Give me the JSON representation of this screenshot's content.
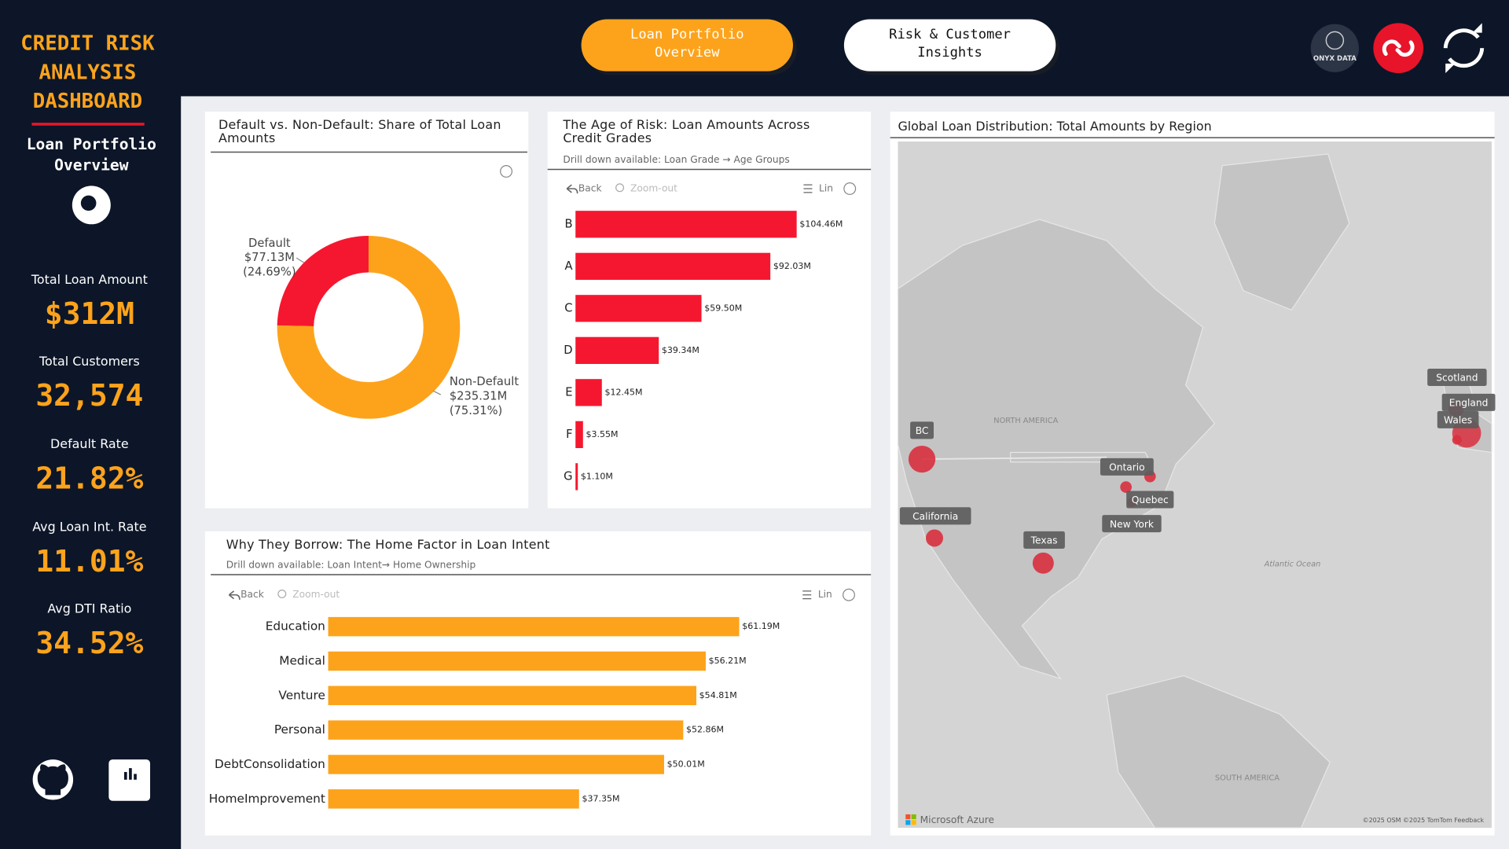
{
  "sidebar": {
    "title": "CREDIT RISK ANALYSIS DASHBOARD",
    "subtitle": "Loan Portfolio Overview",
    "kpis": [
      {
        "label": "Total Loan Amount",
        "value": "$312M"
      },
      {
        "label": "Total Customers",
        "value": "32,574"
      },
      {
        "label": "Default Rate",
        "value": "21.82%"
      },
      {
        "label": "Avg Loan Int. Rate",
        "value": "11.01%"
      },
      {
        "label": "Avg DTI Ratio",
        "value": "34.52%"
      }
    ]
  },
  "tabs": [
    "Loan Portfolio Overview",
    "Risk & Customer Insights"
  ],
  "brand": "ONYX DATA",
  "chart_data": [
    {
      "type": "donut",
      "title": "Default vs. Non-Default: Share of Total Loan Amounts",
      "categories": [
        "Default",
        "Non-Default"
      ],
      "values": [
        77.13,
        235.31
      ],
      "value_labels": [
        "$77.13M",
        "$235.31M"
      ],
      "percentages": [
        24.69,
        75.31
      ],
      "percentage_labels": [
        "(24.69%)",
        "(75.31%)"
      ],
      "colors": [
        "#f5172f",
        "#fda31b"
      ]
    },
    {
      "type": "bar",
      "title": "The Age of Risk: Loan Amounts Across Credit Grades",
      "subtitle": "Drill down available: Loan Grade → Age Groups",
      "controls": [
        "Back",
        "Zoom-out",
        "Lin"
      ],
      "categories": [
        "B",
        "A",
        "C",
        "D",
        "E",
        "F",
        "G"
      ],
      "values": [
        104.46,
        92.03,
        59.5,
        39.34,
        12.45,
        3.55,
        1.1
      ],
      "value_labels": [
        "$104.46M",
        "$92.03M",
        "$59.50M",
        "$39.34M",
        "$12.45M",
        "$3.55M",
        "$1.10M"
      ],
      "color": "#f5172f"
    },
    {
      "type": "bar",
      "title": "Why They Borrow: The Home Factor in Loan Intent",
      "subtitle": "Drill down available: Loan Intent→ Home Ownership",
      "controls": [
        "Back",
        "Zoom-out",
        "Lin"
      ],
      "categories": [
        "Education",
        "Medical",
        "Venture",
        "Personal",
        "DebtConsolidation",
        "HomeImprovement"
      ],
      "values": [
        61.19,
        56.21,
        54.81,
        52.86,
        50.01,
        37.35
      ],
      "value_labels": [
        "$61.19M",
        "$56.21M",
        "$54.81M",
        "$52.86M",
        "$50.01M",
        "$37.35M"
      ],
      "color": "#fda31b"
    }
  ],
  "map": {
    "title": "Global Loan Distribution: Total Amounts by Region",
    "regions": [
      "BC",
      "California",
      "Texas",
      "Ontario",
      "Quebec",
      "New York",
      "Scotland",
      "England",
      "Wales"
    ],
    "places": [
      "NORTH AMERICA",
      "Atlantic Ocean",
      "SOUTH AMERICA"
    ],
    "provider": "Microsoft Azure",
    "attribution": "©2025 OSM ©2025 TomTom Feedback"
  }
}
